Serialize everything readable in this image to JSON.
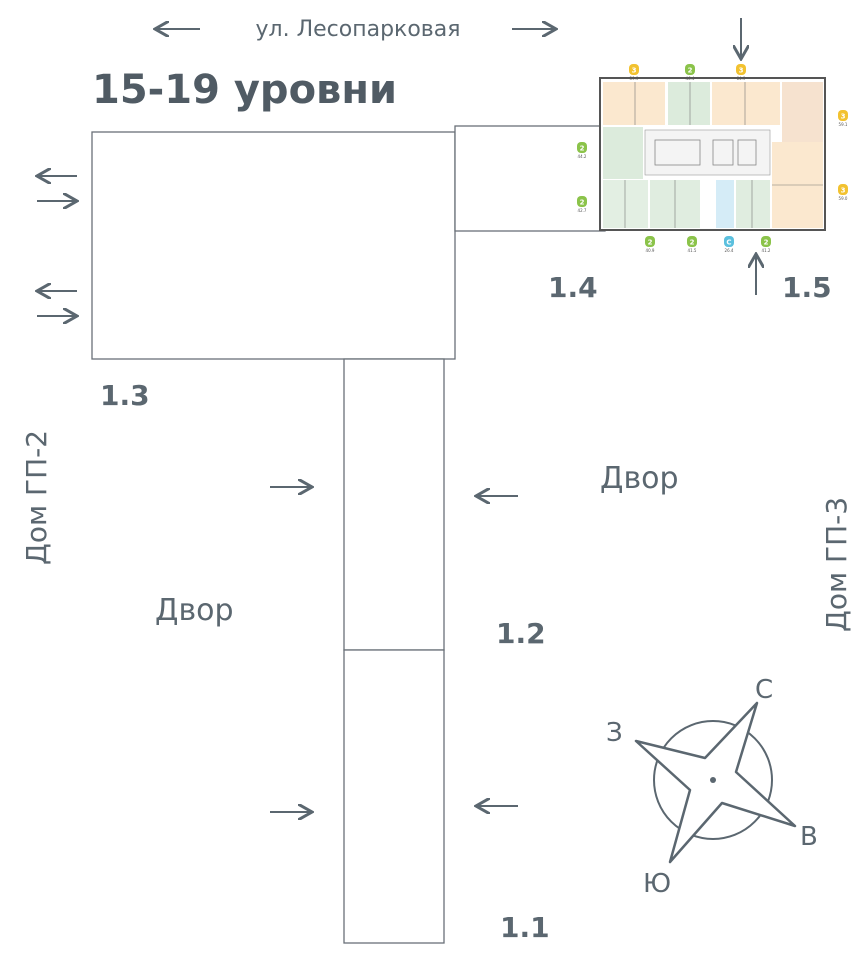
{
  "street": "ул. Лесопарковая",
  "title": "15-19 уровни",
  "sections": {
    "s11": "1.1",
    "s12": "1.2",
    "s13": "1.3",
    "s14": "1.4",
    "s15": "1.5"
  },
  "yards": {
    "left": "Двор",
    "right": "Двор"
  },
  "neighbors": {
    "left": "Дом ГП-2",
    "right": "Дом ГП-3"
  },
  "compass": {
    "north": "С",
    "west": "З",
    "east": "В",
    "south": "Ю"
  },
  "floor_plan": {
    "units": [
      {
        "type": "3",
        "area": "59.9",
        "color": "#f2c230"
      },
      {
        "type": "2",
        "area": "46.4",
        "color": "#8bc34a"
      },
      {
        "type": "3",
        "area": "64.9",
        "color": "#f2c230"
      },
      {
        "type": "3",
        "area": "59.1",
        "color": "#f2c230"
      },
      {
        "type": "3",
        "area": "59.0",
        "color": "#f2c230"
      },
      {
        "type": "2",
        "area": "44.2",
        "color": "#8bc34a"
      },
      {
        "type": "2",
        "area": "42.7",
        "color": "#8bc34a"
      },
      {
        "type": "2",
        "area": "40.9",
        "color": "#8bc34a"
      },
      {
        "type": "2",
        "area": "41.5",
        "color": "#8bc34a"
      },
      {
        "type": "С",
        "area": "26.4",
        "color": "#5bc0de"
      },
      {
        "type": "2",
        "area": "41.2",
        "color": "#8bc34a"
      }
    ]
  },
  "colors": {
    "lines": "#6a7178",
    "text": "#5b6770"
  }
}
